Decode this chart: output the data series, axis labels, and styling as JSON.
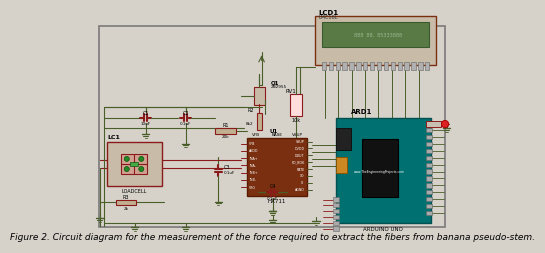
{
  "bg_color": "#d6d2ca",
  "wire_color": "#4a5e2a",
  "wire_color2": "#8b1a1a",
  "component_bg": "#cfc0a8",
  "lcd_screen_color": "#5a7a45",
  "arduino_color": "#007b7b",
  "chip_color": "#7a3010",
  "title": "Figure 2. Circuit diagram for the measurement of the force required to extract the fibers from banana pseudo-stem.",
  "title_fontsize": 6.5,
  "outer_border": "#888888",
  "cap_color": "#8b1a1a",
  "res_color": "#8b1a1a"
}
